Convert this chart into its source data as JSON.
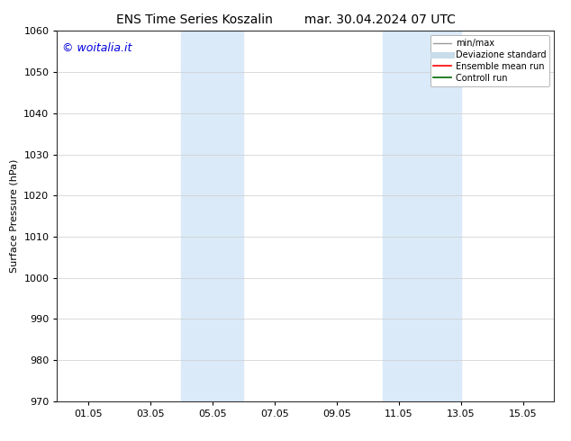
{
  "title_left": "ENS Time Series Koszalin",
  "title_right": "mar. 30.04.2024 07 UTC",
  "ylabel": "Surface Pressure (hPa)",
  "ylim": [
    970,
    1060
  ],
  "yticks": [
    970,
    980,
    990,
    1000,
    1010,
    1020,
    1030,
    1040,
    1050,
    1060
  ],
  "xtick_labels": [
    "01.05",
    "03.05",
    "05.05",
    "07.05",
    "09.05",
    "11.05",
    "13.05",
    "15.05"
  ],
  "xtick_positions": [
    1,
    3,
    5,
    7,
    9,
    11,
    13,
    15
  ],
  "xlim": [
    0,
    16
  ],
  "shaded_bands": [
    {
      "x_start": 4.0,
      "x_end": 4.5,
      "color": "#daeaf8"
    },
    {
      "x_start": 4.5,
      "x_end": 6.0,
      "color": "#daeaf8"
    },
    {
      "x_start": 10.5,
      "x_end": 11.0,
      "color": "#daeaf8"
    },
    {
      "x_start": 11.0,
      "x_end": 12.5,
      "color": "#daeaf8"
    }
  ],
  "background_color": "#ffffff",
  "grid_color": "#cccccc",
  "watermark_text": "© woitalia.it",
  "watermark_color": "#0000dd",
  "legend_entries": [
    {
      "label": "min/max",
      "color": "#999999",
      "lw": 1.0
    },
    {
      "label": "Deviazione standard",
      "color": "#c8dcea",
      "lw": 5
    },
    {
      "label": "Ensemble mean run",
      "color": "#ff0000",
      "lw": 1.2
    },
    {
      "label": "Controll run",
      "color": "#006600",
      "lw": 1.2
    }
  ],
  "title_fontsize": 10,
  "axis_fontsize": 8,
  "tick_fontsize": 8,
  "watermark_fontsize": 9
}
